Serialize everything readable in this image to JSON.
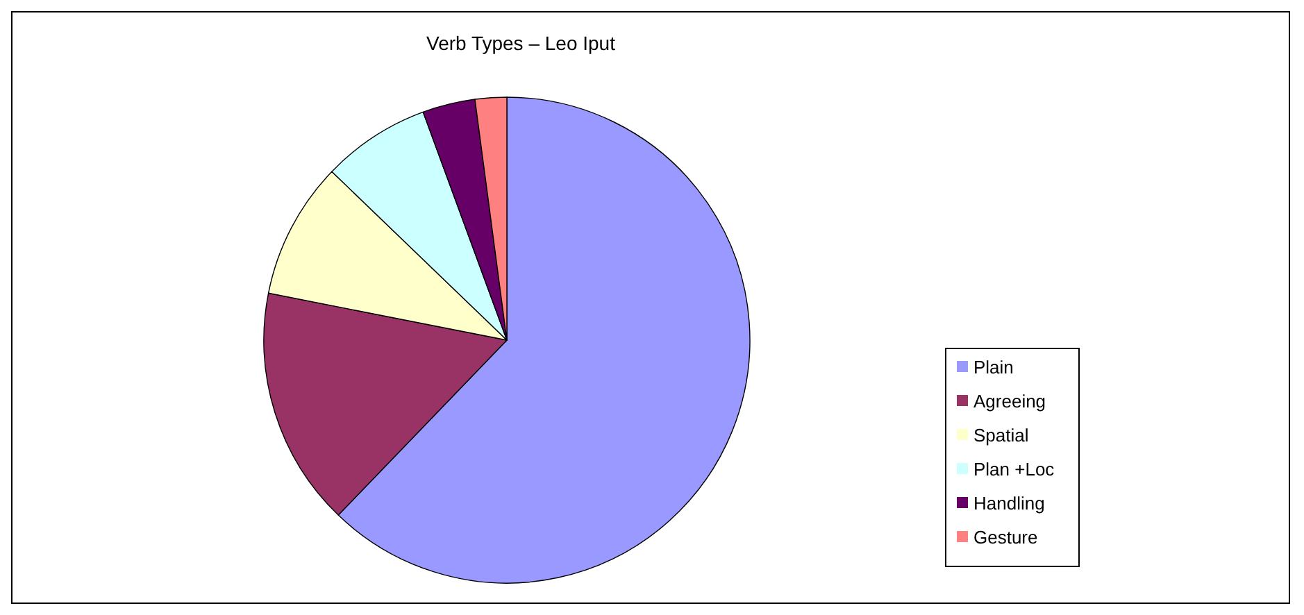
{
  "chart_data": {
    "type": "pie",
    "title": "Verb Types – Leo Iput",
    "categories": [
      "Plain",
      "Agreeing",
      "Spatial",
      "Plan +Loc",
      "Handling",
      "Gesture"
    ],
    "values": [
      62.2,
      15.9,
      9.1,
      7.2,
      3.5,
      2.1
    ],
    "colors": [
      "#9999ff",
      "#993366",
      "#ffffcc",
      "#ccffff",
      "#660066",
      "#ff8080"
    ],
    "legend": "right"
  }
}
